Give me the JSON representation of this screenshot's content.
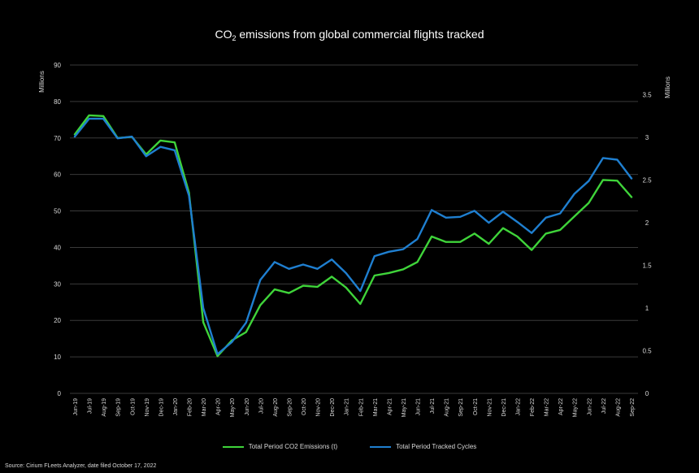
{
  "colors": {
    "background": "#000000",
    "grid": "#3a3a3a",
    "text": "#d9d9d9",
    "emissions": "#3fd43a",
    "cycles": "#1f7fd0"
  },
  "header": {
    "title_pre": "CO",
    "title_sub": "2",
    "title_post": "  emissions from global commercial flights tracked"
  },
  "footer": {
    "source": "Source: Cirium FLeets Analyzer, date filed October 17, 2022"
  },
  "chart_data": {
    "type": "line",
    "title": "CO2  emissions from global commercial flights tracked",
    "left_axis_unit": "Millions",
    "right_axis_unit": "Millions",
    "left_ylim": [
      0,
      90
    ],
    "right_ylim": [
      0,
      3.85
    ],
    "left_ticks": [
      "0",
      "10",
      "20",
      "30",
      "40",
      "50",
      "60",
      "70",
      "80",
      "90"
    ],
    "right_ticks": [
      "0",
      "0.5",
      "1",
      "1.5",
      "2",
      "2.5",
      "3",
      "3.5"
    ],
    "grid": true,
    "legend_position": "bottom",
    "categories": [
      "Jun-19",
      "Jul-19",
      "Aug-19",
      "Sep-19",
      "Oct-19",
      "Nov-19",
      "Dec-19",
      "Jan-20",
      "Feb-20",
      "Mar-20",
      "Apr-20",
      "May-20",
      "Jun-20",
      "Jul-20",
      "Aug-20",
      "Sep-20",
      "Oct-20",
      "Nov-20",
      "Dec-20",
      "Jan-21",
      "Feb-21",
      "Mar-21",
      "Apr-21",
      "May-21",
      "Jun-21",
      "Jul-21",
      "Aug-21",
      "Sep-21",
      "Oct-21",
      "Nov-21",
      "Dec-21",
      "Jan-22",
      "Feb-22",
      "Mar-22",
      "Apr-22",
      "May-22",
      "Jun-22",
      "Jul-22",
      "Aug-22",
      "Sep-22"
    ],
    "series": [
      {
        "name": "Total Period CO2 Emissions (t)",
        "axis": "left",
        "values": [
          71,
          76.2,
          76,
          70,
          70.3,
          65.5,
          69.3,
          68.8,
          55,
          19.5,
          10.2,
          14.5,
          16.8,
          24.2,
          28.5,
          27.5,
          29.5,
          29.2,
          32,
          29,
          24.5,
          32.3,
          33,
          34,
          36,
          43,
          41.5,
          41.5,
          43.8,
          41,
          45.3,
          43,
          39.3,
          43.8,
          44.8,
          48.5,
          52.2,
          58.5,
          58.3,
          53.8
        ]
      },
      {
        "name": "Total Period Tracked Cycles",
        "axis": "right",
        "values": [
          3.01,
          3.22,
          3.22,
          2.99,
          3.01,
          2.78,
          2.89,
          2.85,
          2.32,
          1.0,
          0.46,
          0.6,
          0.83,
          1.33,
          1.54,
          1.46,
          1.51,
          1.46,
          1.57,
          1.41,
          1.2,
          1.61,
          1.66,
          1.69,
          1.81,
          2.15,
          2.06,
          2.07,
          2.14,
          2.0,
          2.13,
          2.01,
          1.88,
          2.06,
          2.11,
          2.34,
          2.49,
          2.76,
          2.74,
          2.52
        ]
      }
    ]
  }
}
